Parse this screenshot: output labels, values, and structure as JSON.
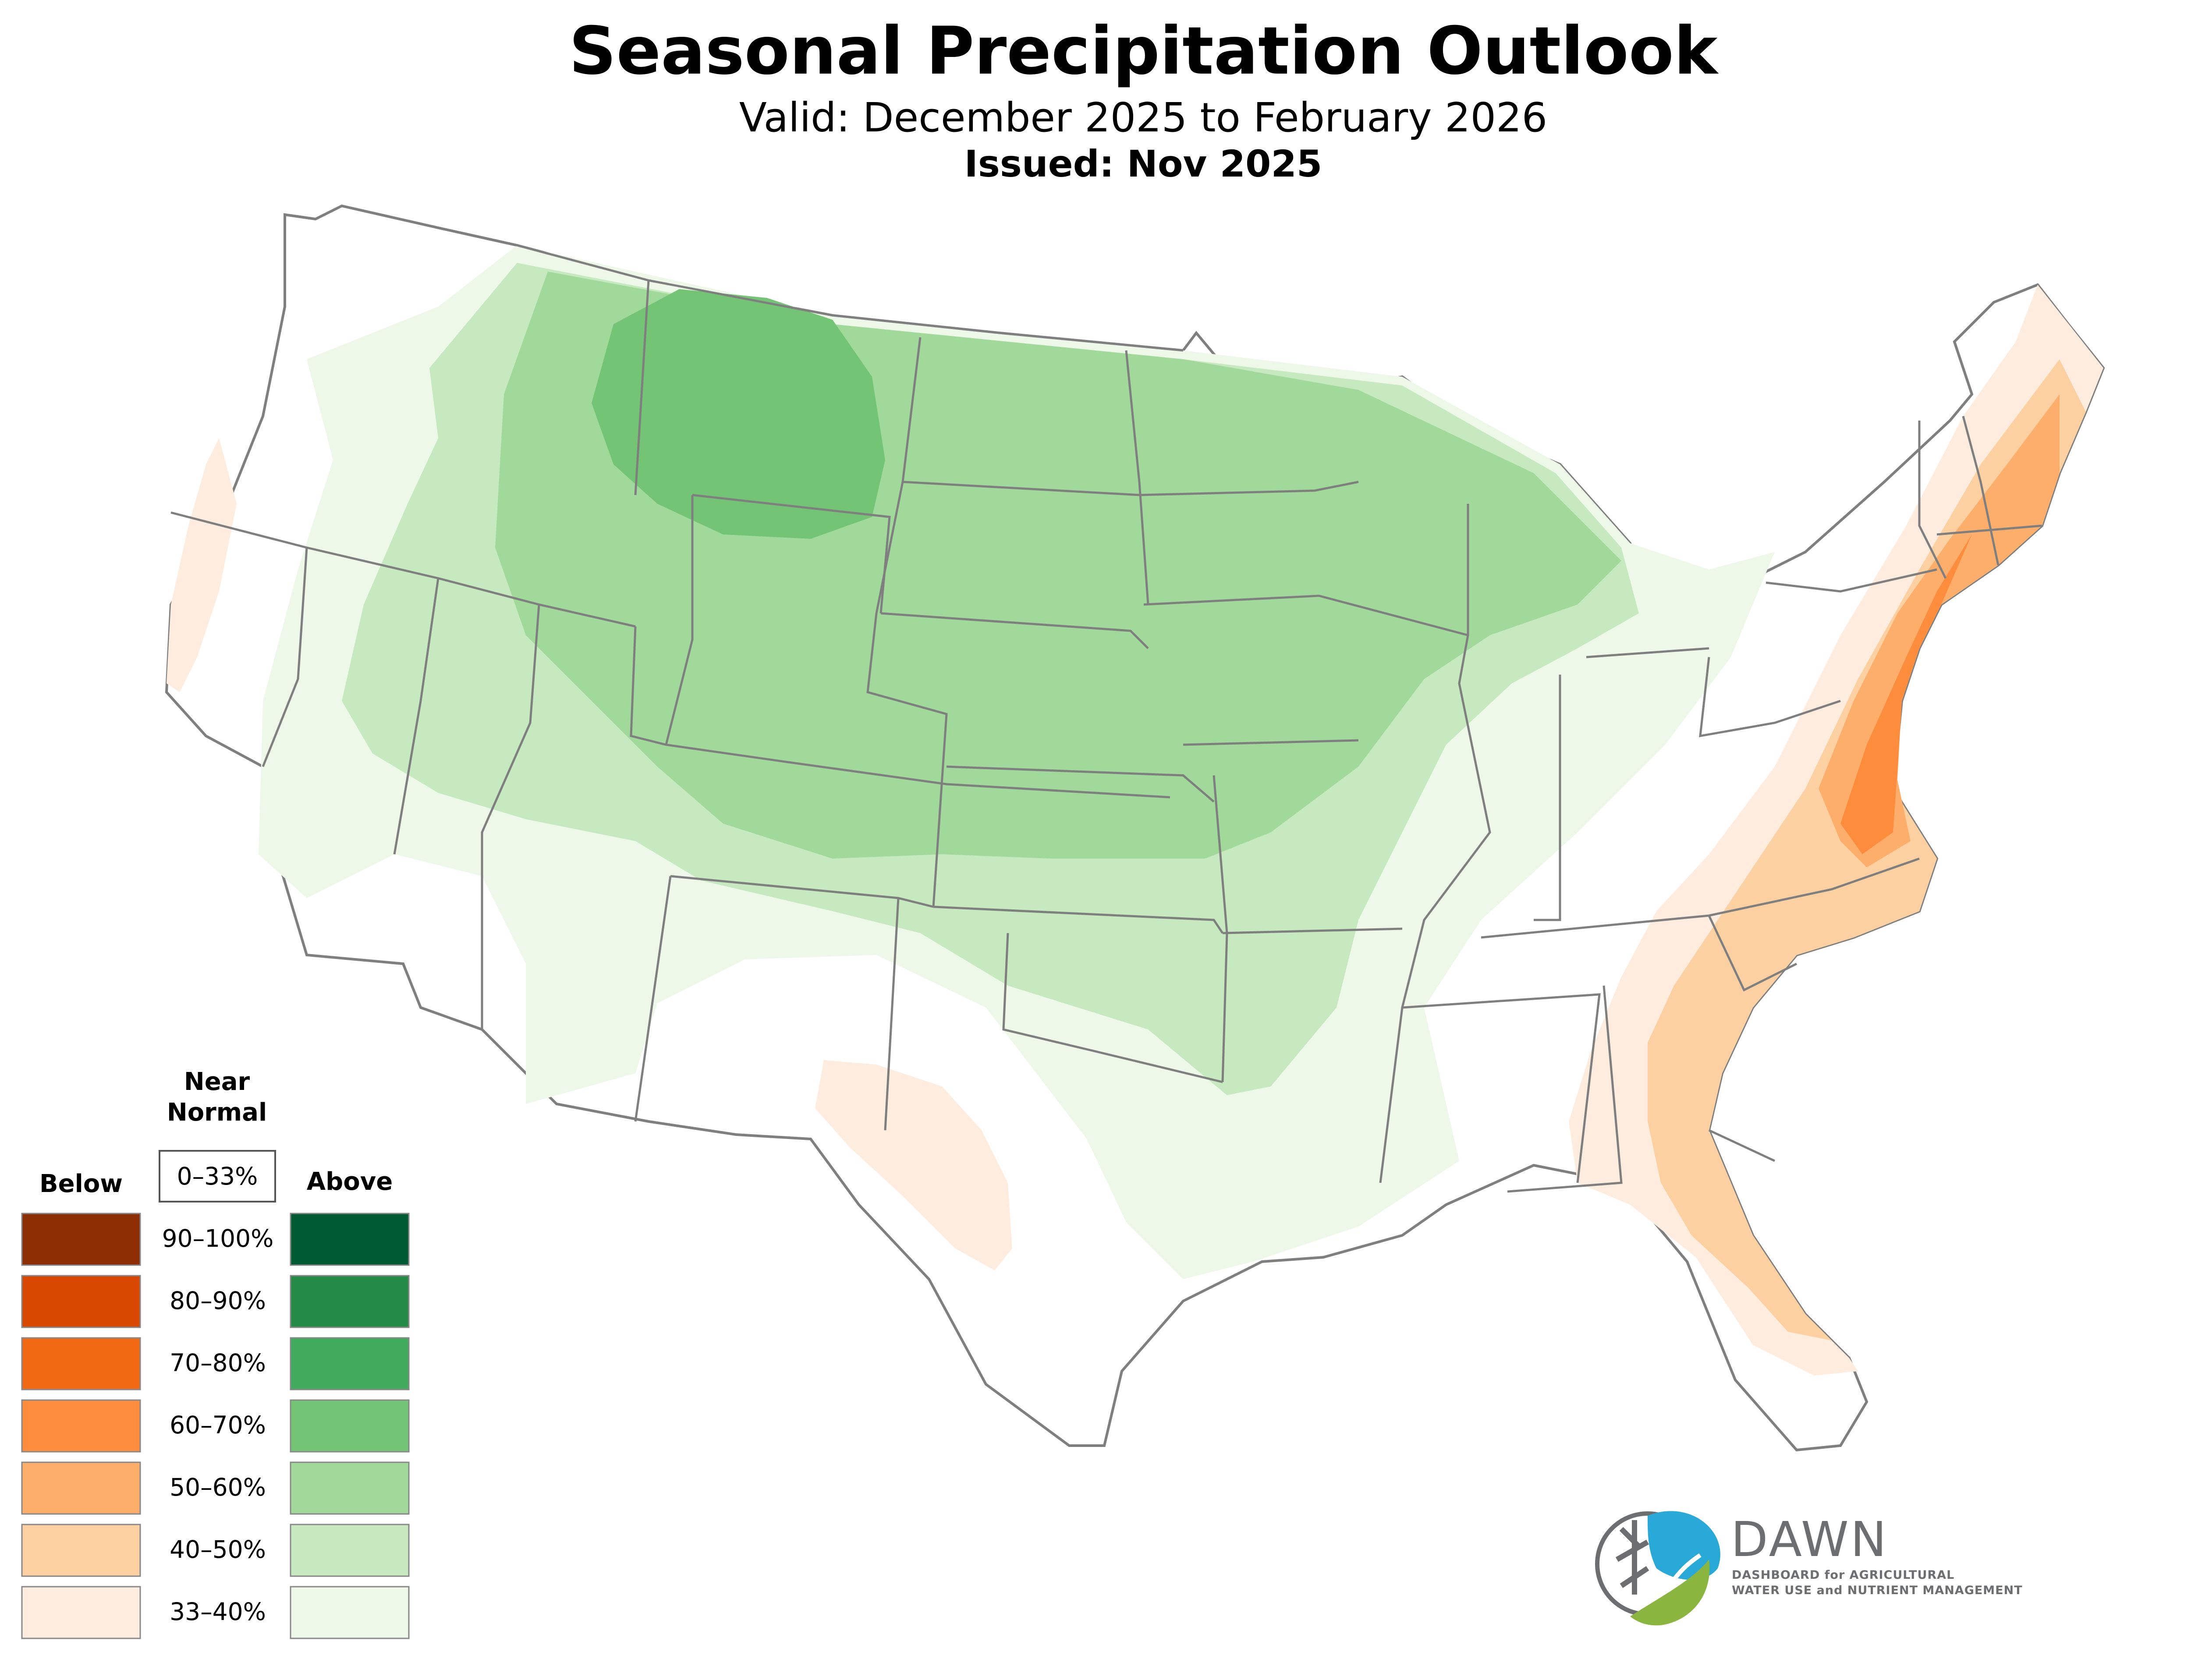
{
  "title": "Seasonal Precipitation Outlook",
  "subtitle": "Valid: December 2025 to February 2026",
  "issued": "Issued: Nov 2025",
  "legend": {
    "near_normal_heading_line1": "Near",
    "near_normal_heading_line2": "Normal",
    "near_normal_range": "0–33%",
    "below_heading": "Below",
    "above_heading": "Above",
    "ranges": [
      "90–100%",
      "80–90%",
      "70–80%",
      "60–70%",
      "50–60%",
      "40–50%",
      "33–40%"
    ],
    "below_colors": [
      "#8c2d04",
      "#d94801",
      "#f16913",
      "#fd8d3c",
      "#fdae6b",
      "#fdd0a2",
      "#feeddf"
    ],
    "above_colors": [
      "#005a32",
      "#238b45",
      "#41ab5d",
      "#74c476",
      "#a1d99b",
      "#c7e9c0",
      "#edf8e9"
    ]
  },
  "logo": {
    "name": "DAWN",
    "tagline_line1": "DASHBOARD for AGRICULTURAL",
    "tagline_line2": "WATER USE and NUTRIENT MANAGEMENT"
  }
}
